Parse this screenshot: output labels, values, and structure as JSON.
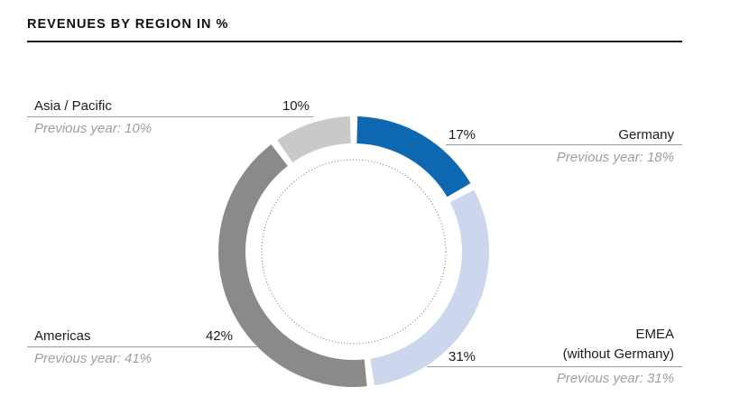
{
  "title": "REVENUES BY REGION IN %",
  "chart_data": {
    "type": "pie",
    "variant": "donut",
    "title": "REVENUES BY REGION IN %",
    "unit": "%",
    "start_angle_deg": 0,
    "direction": "clockwise",
    "inner_dotted_circle": true,
    "segments": [
      {
        "label": "Germany",
        "value": 17,
        "previous_year": 18,
        "color": "#0d68b1"
      },
      {
        "label": "EMEA (without Germany)",
        "value": 31,
        "previous_year": 31,
        "color": "#ccd7ed"
      },
      {
        "label": "Americas",
        "value": 42,
        "previous_year": 41,
        "color": "#8a8a8a"
      },
      {
        "label": "Asia / Pacific",
        "value": 10,
        "previous_year": 10,
        "color": "#c9c9c9"
      }
    ]
  },
  "callouts": {
    "asia": {
      "label": "Asia / Pacific",
      "value": "10%",
      "previous": "Previous year: 10%"
    },
    "germany": {
      "label": "Germany",
      "value": "17%",
      "previous": "Previous year: 18%"
    },
    "americas": {
      "label": "Americas",
      "value": "42%",
      "previous": "Previous year: 41%"
    },
    "emea": {
      "label": "EMEA\n(without Germany)",
      "value": "31%",
      "previous": "Previous year: 31%"
    }
  },
  "colors": {
    "accent_blue": "#0d68b1",
    "light_blue": "#ccd7ed",
    "dark_gray": "#8a8a8a",
    "light_gray": "#c9c9c9",
    "leader_line": "#9a9a9a",
    "previous_text": "#9e9e9e",
    "title_rule": "#1b1b1b"
  }
}
